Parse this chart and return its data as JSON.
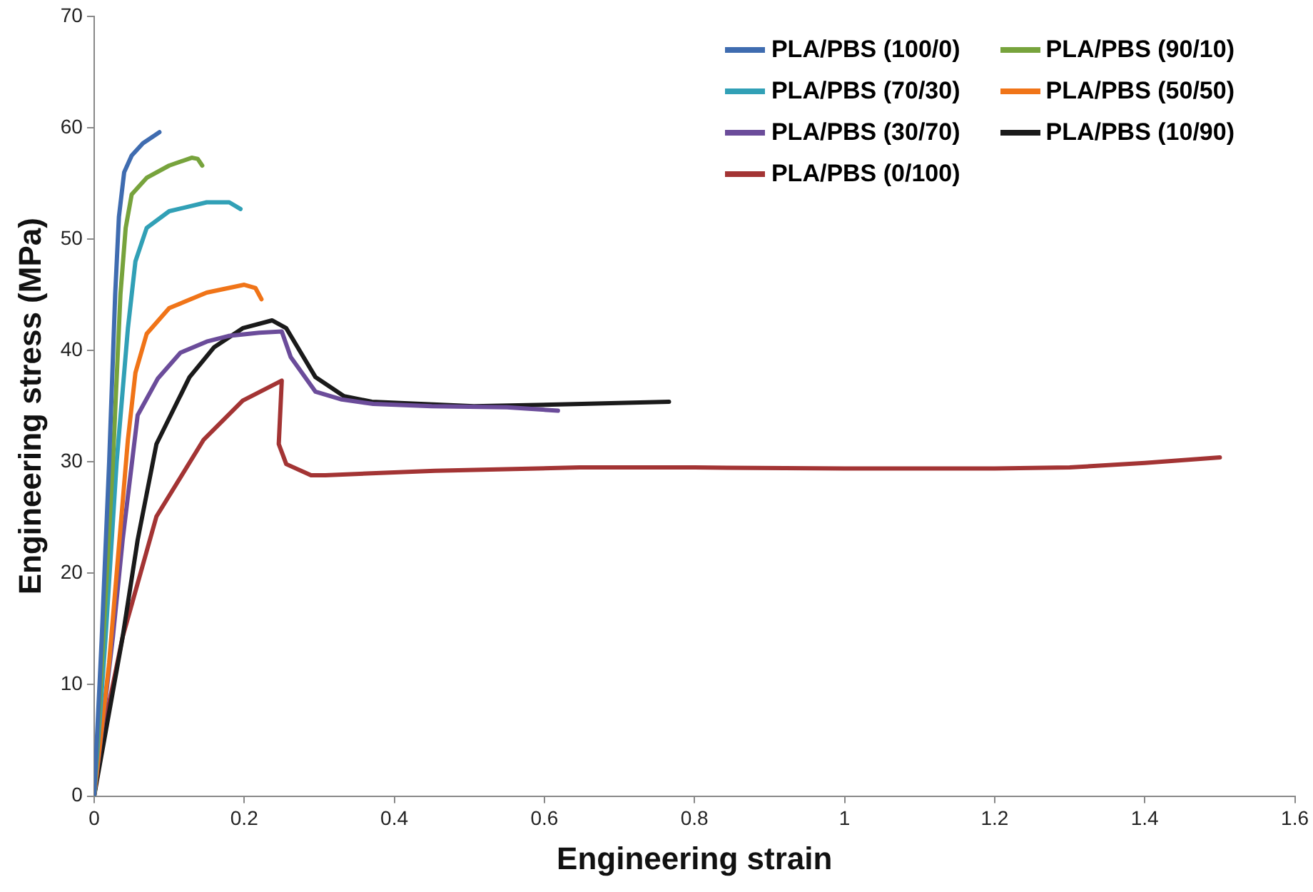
{
  "chart_data": {
    "type": "line",
    "xlabel": "Engineering strain",
    "ylabel": "Engineering stress (MPa)",
    "xlim": [
      0,
      1.6
    ],
    "xticks": [
      0,
      0.2,
      0.4,
      0.6,
      0.8,
      1,
      1.2,
      1.4,
      1.6
    ],
    "ylim": [
      0,
      70
    ],
    "yticks": [
      0,
      10,
      20,
      30,
      40,
      50,
      60,
      70
    ],
    "grid": false,
    "legend": "top right",
    "marker": "none",
    "line_style": "solid",
    "series": [
      {
        "name": "PLA/PBS (100/0)",
        "color": "#3f6cb0",
        "x": [
          0,
          0.01,
          0.02,
          0.028,
          0.033,
          0.04,
          0.05,
          0.065,
          0.087
        ],
        "values": [
          0,
          14,
          30,
          45,
          52,
          56,
          57.5,
          58.6,
          59.6
        ]
      },
      {
        "name": "PLA/PBS (90/10)",
        "color": "#77a33c",
        "x": [
          0,
          0.012,
          0.025,
          0.035,
          0.042,
          0.05,
          0.07,
          0.1,
          0.13,
          0.138,
          0.144
        ],
        "values": [
          0,
          14,
          30,
          45,
          51,
          54,
          55.5,
          56.6,
          57.3,
          57.2,
          56.6
        ]
      },
      {
        "name": "PLA/PBS (70/30)",
        "color": "#31a0b6",
        "x": [
          0,
          0.015,
          0.03,
          0.045,
          0.055,
          0.07,
          0.1,
          0.15,
          0.18,
          0.195
        ],
        "values": [
          0,
          14,
          30,
          42,
          48,
          51,
          52.5,
          53.3,
          53.3,
          52.7
        ]
      },
      {
        "name": "PLA/PBS (50/50)",
        "color": "#f07418",
        "x": [
          0,
          0.02,
          0.035,
          0.045,
          0.055,
          0.07,
          0.1,
          0.15,
          0.2,
          0.215,
          0.223
        ],
        "values": [
          0,
          12,
          24,
          32,
          38,
          41.5,
          43.8,
          45.2,
          45.9,
          45.6,
          44.6
        ]
      },
      {
        "name": "PLA/PBS (30/70)",
        "color": "#6b4c9a",
        "x": [
          0,
          0.025,
          0.038,
          0.058,
          0.085,
          0.115,
          0.15,
          0.179,
          0.22,
          0.25,
          0.262,
          0.295,
          0.33,
          0.372,
          0.45,
          0.55,
          0.618
        ],
        "values": [
          0,
          14.3,
          23,
          34.2,
          37.5,
          39.8,
          40.8,
          41.3,
          41.6,
          41.7,
          39.4,
          36.3,
          35.6,
          35.2,
          35,
          34.9,
          34.6
        ]
      },
      {
        "name": "PLA/PBS (10/90)",
        "color": "#1a1a1a",
        "x": [
          0,
          0.038,
          0.058,
          0.083,
          0.127,
          0.16,
          0.198,
          0.237,
          0.256,
          0.295,
          0.333,
          0.37,
          0.506,
          0.65,
          0.766
        ],
        "values": [
          0,
          14.3,
          23,
          31.6,
          37.6,
          40.3,
          42,
          42.7,
          42,
          37.6,
          35.9,
          35.4,
          35,
          35.2,
          35.4
        ]
      },
      {
        "name": "PLA/PBS (0/100)",
        "color": "#a33434",
        "x": [
          0,
          0.012,
          0.038,
          0.083,
          0.146,
          0.198,
          0.25,
          0.246,
          0.256,
          0.289,
          0.308,
          0.454,
          0.647,
          0.8,
          1,
          1.2,
          1.3,
          1.4,
          1.5
        ],
        "values": [
          0,
          5.7,
          14.3,
          25.1,
          32,
          35.5,
          37.3,
          31.6,
          29.8,
          28.8,
          28.8,
          29.2,
          29.5,
          29.5,
          29.4,
          29.4,
          29.5,
          29.9,
          30.4
        ]
      }
    ]
  }
}
